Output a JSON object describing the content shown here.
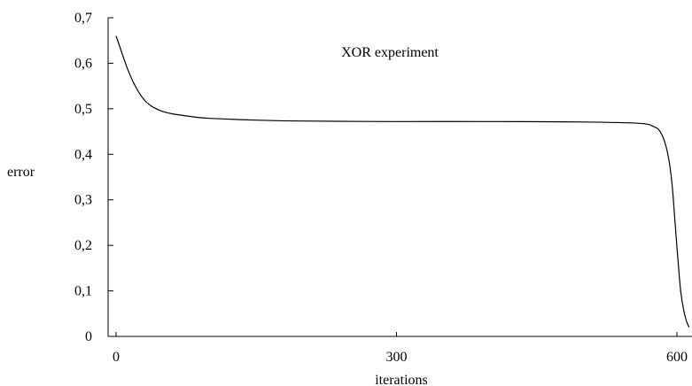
{
  "chart_data": {
    "type": "line",
    "title": "XOR experiment",
    "xlabel": "iterations",
    "ylabel": "error",
    "xlim": [
      0,
      600
    ],
    "ylim": [
      0,
      0.7
    ],
    "grid": false,
    "legend": "none",
    "x_ticks": [
      {
        "value": 0,
        "label": "0"
      },
      {
        "value": 300,
        "label": "300"
      },
      {
        "value": 600,
        "label": "600"
      }
    ],
    "y_ticks": [
      {
        "value": 0,
        "label": "0"
      },
      {
        "value": 0.1,
        "label": "0,1"
      },
      {
        "value": 0.2,
        "label": "0,2"
      },
      {
        "value": 0.3,
        "label": "0,3"
      },
      {
        "value": 0.4,
        "label": "0,4"
      },
      {
        "value": 0.5,
        "label": "0,5"
      },
      {
        "value": 0.6,
        "label": "0,6"
      },
      {
        "value": 0.7,
        "label": "0,7"
      }
    ],
    "series": [
      {
        "x": [
          0,
          5,
          10,
          15,
          20,
          25,
          30,
          35,
          40,
          50,
          60,
          80,
          100,
          150,
          200,
          300,
          400,
          500,
          560,
          575,
          582,
          588,
          592,
          595,
          598,
          601,
          604,
          607,
          610,
          613
        ],
        "y": [
          0.66,
          0.63,
          0.6,
          0.574,
          0.552,
          0.534,
          0.52,
          0.51,
          0.503,
          0.494,
          0.489,
          0.483,
          0.479,
          0.475,
          0.473,
          0.472,
          0.472,
          0.471,
          0.468,
          0.461,
          0.45,
          0.42,
          0.38,
          0.33,
          0.25,
          0.17,
          0.1,
          0.06,
          0.035,
          0.02
        ]
      }
    ]
  }
}
